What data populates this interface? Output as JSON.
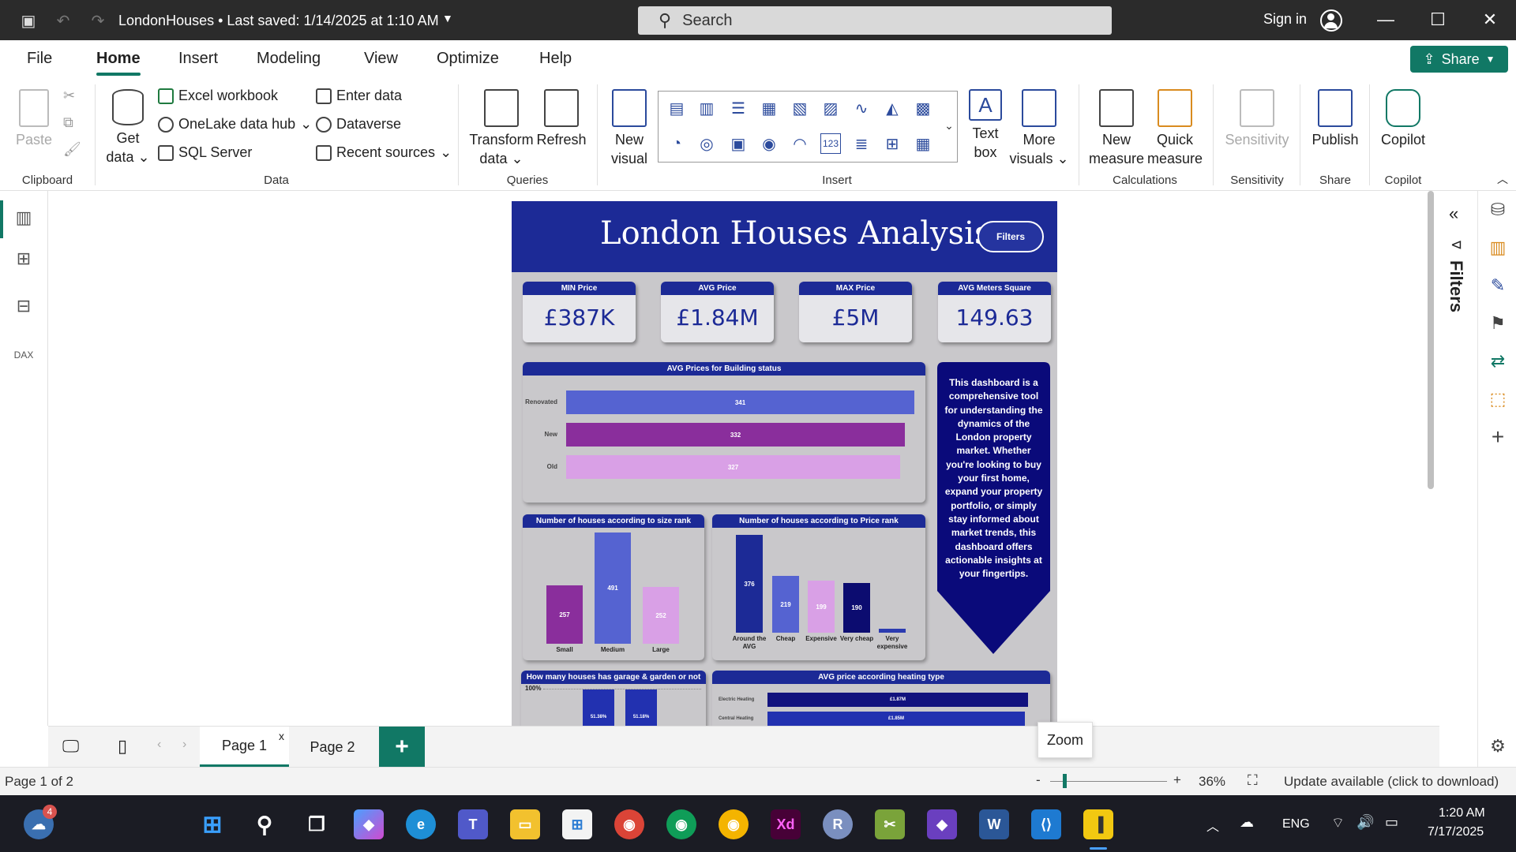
{
  "titlebar": {
    "doc_title": "LondonHouses • Last saved: 1/14/2025 at 1:10 AM",
    "search_placeholder": "Search",
    "sign_in": "Sign in"
  },
  "menu": {
    "tabs": [
      "File",
      "Home",
      "Insert",
      "Modeling",
      "View",
      "Optimize",
      "Help"
    ],
    "active": "Home",
    "share": "Share"
  },
  "ribbon": {
    "paste": "Paste",
    "get_data": "Get data",
    "excel_workbook": "Excel workbook",
    "onelake": "OneLake data hub",
    "sql_server": "SQL Server",
    "enter_data": "Enter data",
    "dataverse": "Dataverse",
    "recent_sources": "Recent sources",
    "transform_data": "Transform data",
    "refresh": "Refresh",
    "new_visual": "New visual",
    "text_box": "Text box",
    "more_visuals": "More visuals",
    "new_measure": "New measure",
    "quick_measure": "Quick measure",
    "sensitivity": "Sensitivity",
    "publish": "Publish",
    "copilot": "Copilot",
    "groups": {
      "clipboard": "Clipboard",
      "data": "Data",
      "queries": "Queries",
      "insert": "Insert",
      "calculations": "Calculations",
      "sensitivity": "Sensitivity",
      "share": "Share",
      "copilot": "Copilot"
    }
  },
  "report": {
    "title": "London Houses Analysis",
    "filters_button": "Filters",
    "kpis": [
      {
        "label": "MIN Price",
        "value": "£387K"
      },
      {
        "label": "AVG Price",
        "value": "£1.84M"
      },
      {
        "label": "MAX Price",
        "value": "£5M"
      },
      {
        "label": "AVG Meters Square",
        "value": "149.63"
      }
    ],
    "callout": "This dashboard is a comprehensive tool for understanding the dynamics of the London property market. Whether you're looking to buy your first home, expand your property portfolio, or simply stay informed about market trends, this dashboard offers actionable insights at your fingertips.",
    "garage_title": "How many houses has garage & garden or not",
    "garage_axis": "100%",
    "garage_values": [
      "51.38%",
      "51.18%"
    ],
    "heating_title": "AVG price according heating type",
    "heating_rows": [
      {
        "label": "Electric Heating",
        "value": "£1.87M"
      },
      {
        "label": "Central Heating",
        "value": "£1.85M"
      }
    ]
  },
  "chart_data": [
    {
      "type": "bar",
      "orientation": "horizontal",
      "title": "AVG Prices for Building status",
      "categories": [
        "Renovated",
        "New",
        "Old"
      ],
      "values": [
        341,
        332,
        327
      ],
      "colors": [
        "#5563d1",
        "#8a2e9c",
        "#d9a0e6"
      ]
    },
    {
      "type": "bar",
      "title": "Number of houses according to size rank",
      "categories": [
        "Small",
        "Medium",
        "Large"
      ],
      "values": [
        257,
        491,
        252
      ],
      "colors": [
        "#8a2e9c",
        "#5563d1",
        "#d9a0e6"
      ]
    },
    {
      "type": "bar",
      "title": "Number of houses according to Price rank",
      "categories": [
        "Around the AVG",
        "Cheap",
        "Expensive",
        "Very cheap",
        "Very expensive"
      ],
      "values": [
        376,
        219,
        199,
        190,
        15
      ],
      "colors": [
        "#1c2a96",
        "#5563d1",
        "#d9a0e6",
        "#0c0c70",
        "#2b3bb0"
      ]
    }
  ],
  "pages": {
    "tabs": [
      "Page 1",
      "Page 2"
    ],
    "active": "Page 1",
    "zoom_tip": "Zoom"
  },
  "status": {
    "page_info": "Page 1 of 2",
    "zoom_level": "36%",
    "update": "Update available (click to download)"
  },
  "taskbar": {
    "lang": "ENG",
    "time": "1:20 AM",
    "date": "7/17/2025",
    "weather_badge": "4"
  }
}
